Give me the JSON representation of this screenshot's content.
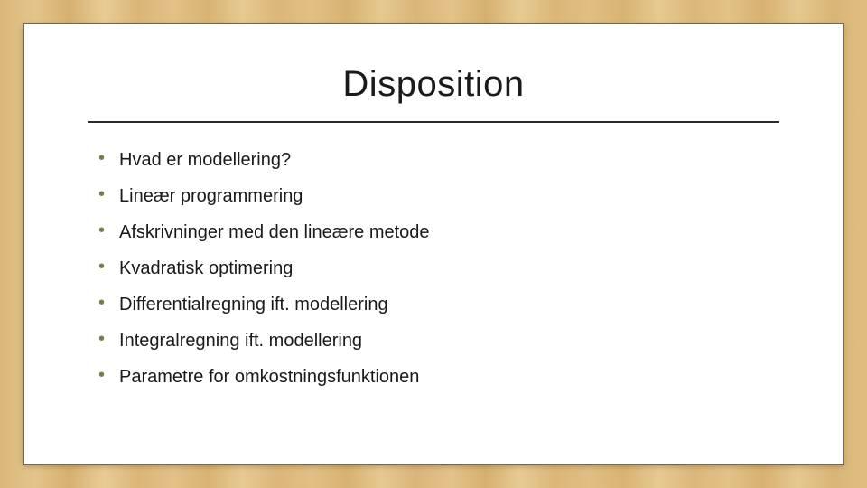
{
  "slide": {
    "title": "Disposition",
    "title_fontsize": 40,
    "title_color": "#1a1a1a",
    "rule_color": "#2b2b2b",
    "bullet_color": "#7a7a4a",
    "text_color": "#1a1a1a",
    "text_fontsize": 20,
    "background_card_color": "#ffffff",
    "card_border_color": "#6b6b5a",
    "wood_bg_colors": [
      "#d9b77a",
      "#e3c48a",
      "#d6b071",
      "#e8cc95"
    ],
    "bullets": [
      "Hvad er modellering?",
      "Lineær programmering",
      "Afskrivninger med den lineære metode",
      "Kvadratisk optimering",
      "Differentialregning ift. modellering",
      "Integralregning ift. modellering",
      "Parametre for omkostningsfunktionen"
    ]
  }
}
